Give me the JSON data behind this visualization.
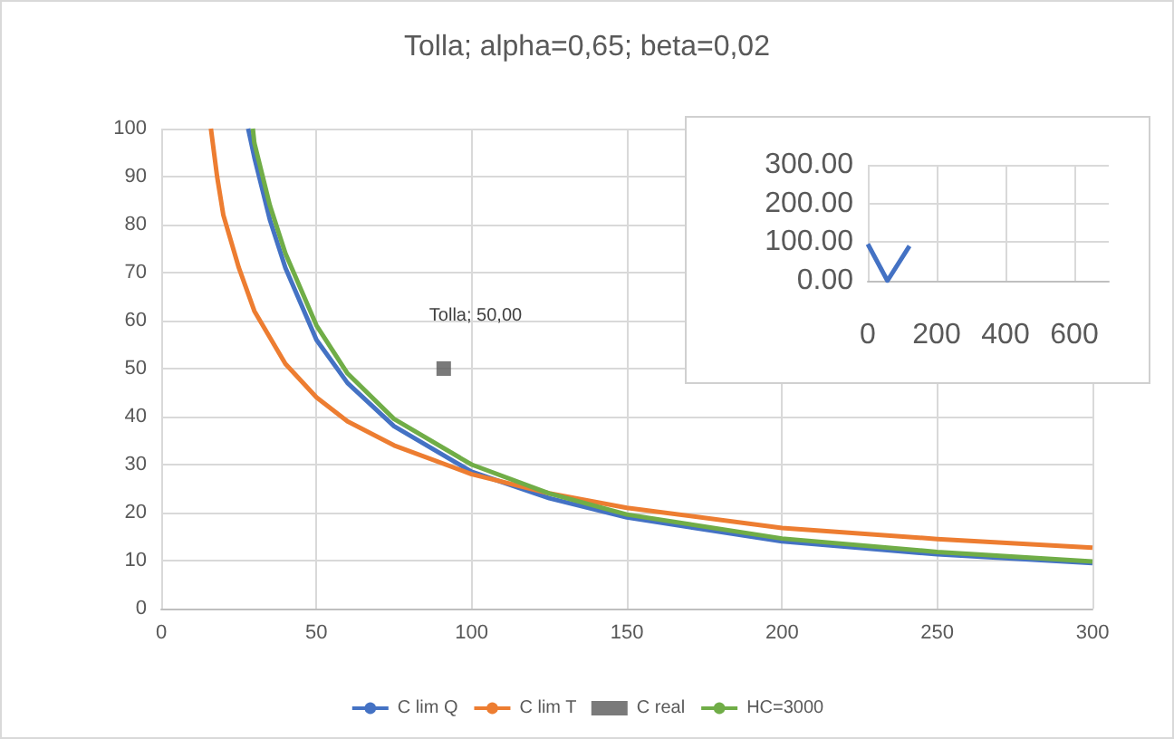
{
  "chart_data": [
    {
      "type": "line",
      "title": "Tolla; alpha=0,65; beta=0,02",
      "legend": "bottom",
      "grid": true,
      "xlim": [
        0,
        300
      ],
      "xticks": [
        0,
        50,
        100,
        150,
        200,
        250,
        300
      ],
      "ylim": [
        0,
        100
      ],
      "yticks": [
        0,
        10,
        20,
        30,
        40,
        50,
        60,
        70,
        80,
        90,
        100
      ],
      "series": [
        {
          "name": "C lim Q",
          "color": "#4472c4",
          "x": [
            28,
            30,
            35,
            40,
            50,
            60,
            75,
            100,
            125,
            150,
            200,
            250,
            300
          ],
          "values": [
            100,
            94,
            81,
            71,
            56,
            47,
            38,
            28.5,
            23,
            19,
            14,
            11.3,
            9.5
          ]
        },
        {
          "name": "C lim T",
          "color": "#ed7d31",
          "x": [
            16,
            18,
            20,
            25,
            30,
            40,
            50,
            60,
            75,
            100,
            125,
            150,
            200,
            250,
            300
          ],
          "values": [
            100,
            90,
            82,
            71,
            62,
            51,
            44,
            39,
            34,
            28,
            24,
            21,
            16.8,
            14.5,
            12.7
          ]
        },
        {
          "name": "C real",
          "type": "scatter",
          "marker": "square",
          "color": "#595959",
          "x": [
            91
          ],
          "values": [
            50
          ]
        },
        {
          "name": "HC=3000",
          "color": "#70ad47",
          "x": [
            29.5,
            30,
            35,
            40,
            50,
            60,
            75,
            100,
            125,
            150,
            200,
            250,
            300
          ],
          "values": [
            100,
            97,
            84,
            74,
            59,
            49,
            39.5,
            30,
            24,
            19.6,
            14.6,
            11.8,
            9.8
          ]
        }
      ],
      "annotations": [
        {
          "text": "Tolla; 50,00",
          "x": 91,
          "y": 50
        }
      ]
    },
    {
      "type": "line",
      "grid": true,
      "xlim": [
        0,
        700
      ],
      "xticks": [
        0,
        200,
        400,
        600
      ],
      "ylim": [
        0,
        300
      ],
      "yticks": [
        {
          "value": 0,
          "label": "0.00"
        },
        {
          "value": 100,
          "label": "100.00"
        },
        {
          "value": 200,
          "label": "200.00"
        },
        {
          "value": 300,
          "label": "300.00"
        }
      ],
      "series": [
        {
          "color": "#4472c4",
          "x": [
            0,
            57,
            121
          ],
          "values": [
            95,
            0,
            90
          ]
        }
      ]
    }
  ]
}
